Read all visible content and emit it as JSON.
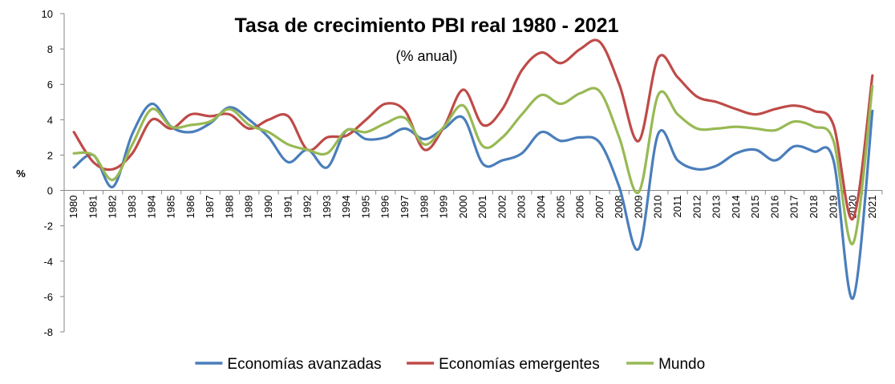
{
  "chart_data": {
    "type": "line",
    "title": "Tasa de crecimiento PBI real 1980 - 2021",
    "subtitle": "(% anual)",
    "ylabel": "%",
    "xlabel": "",
    "ylim": [
      -8,
      10
    ],
    "yticks": [
      10,
      8,
      6,
      4,
      2,
      0,
      -2,
      -4,
      -6,
      -8
    ],
    "grid": false,
    "legend_position": "bottom",
    "categories": [
      "1980",
      "1981",
      "1982",
      "1983",
      "1984",
      "1985",
      "1986",
      "1987",
      "1988",
      "1989",
      "1990",
      "1991",
      "1992",
      "1993",
      "1994",
      "1995",
      "1996",
      "1997",
      "1998",
      "1999",
      "2000",
      "2001",
      "2002",
      "2003",
      "2004",
      "2005",
      "2006",
      "2007",
      "2008",
      "2009",
      "2010",
      "2011",
      "2012",
      "2013",
      "2014",
      "2015",
      "2016",
      "2017",
      "2018",
      "2019",
      "2020",
      "2021"
    ],
    "series": [
      {
        "name": "Economías avanzadas",
        "color": "#4a7ebb",
        "values": [
          1.3,
          2.0,
          0.2,
          3.2,
          4.9,
          3.6,
          3.3,
          3.8,
          4.7,
          4.0,
          3.0,
          1.6,
          2.3,
          1.3,
          3.4,
          2.9,
          3.0,
          3.5,
          2.9,
          3.5,
          4.1,
          1.5,
          1.7,
          2.1,
          3.3,
          2.8,
          3.0,
          2.7,
          0.2,
          -3.3,
          3.2,
          1.7,
          1.2,
          1.4,
          2.1,
          2.3,
          1.7,
          2.5,
          2.2,
          1.7,
          -6.1,
          4.5
        ]
      },
      {
        "name": "Economías emergentes",
        "color": "#be4b48",
        "values": [
          3.3,
          1.6,
          1.2,
          2.1,
          4.0,
          3.5,
          4.3,
          4.2,
          4.3,
          3.5,
          4.0,
          4.2,
          2.3,
          3.0,
          3.1,
          4.0,
          4.9,
          4.5,
          2.3,
          3.6,
          5.7,
          3.7,
          4.6,
          6.8,
          7.8,
          7.2,
          8.0,
          8.4,
          6.0,
          2.8,
          7.5,
          6.4,
          5.3,
          5.0,
          4.6,
          4.3,
          4.6,
          4.8,
          4.5,
          3.7,
          -1.6,
          6.5
        ]
      },
      {
        "name": "Mundo",
        "color": "#98b954",
        "values": [
          2.1,
          2.0,
          0.6,
          2.6,
          4.6,
          3.6,
          3.7,
          3.9,
          4.6,
          3.7,
          3.3,
          2.6,
          2.3,
          2.1,
          3.4,
          3.3,
          3.8,
          4.1,
          2.6,
          3.6,
          4.8,
          2.5,
          3.0,
          4.3,
          5.4,
          4.9,
          5.5,
          5.6,
          3.0,
          -0.1,
          5.4,
          4.3,
          3.5,
          3.5,
          3.6,
          3.5,
          3.4,
          3.9,
          3.6,
          2.8,
          -3.0,
          5.9
        ]
      }
    ]
  }
}
